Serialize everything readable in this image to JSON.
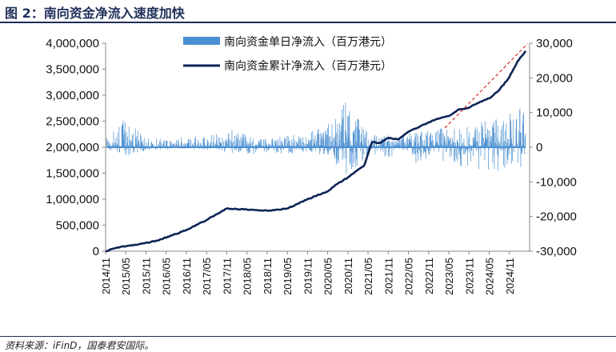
{
  "figure": {
    "title": "图 2：南向资金净流入速度加快",
    "source": "资料来源：iFinD，国泰君安国际。"
  },
  "colors": {
    "bar": "#4a8fd1",
    "line": "#0d2456",
    "trend": "#d62f2f",
    "title": "#1f2f5a"
  },
  "chart_data": {
    "type": "bar+line",
    "legend": [
      "南向资金单日净流入（百万港元）",
      "南向资金累计净流入（百万港元）"
    ],
    "legend_placement": "top-center",
    "x_ticks": [
      "2014/11",
      "2015/05",
      "2015/11",
      "2016/05",
      "2016/11",
      "2017/05",
      "2017/11",
      "2018/05",
      "2018/11",
      "2019/05",
      "2019/11",
      "2020/05",
      "2020/11",
      "2021/05",
      "2021/11",
      "2022/05",
      "2022/11",
      "2023/05",
      "2023/11",
      "2024/05",
      "2024/11"
    ],
    "y_left": {
      "label": "",
      "ylim": [
        0,
        4000000
      ],
      "ticks": [
        "0",
        "500,000",
        "1,000,000",
        "1,500,000",
        "2,000,000",
        "2,500,000",
        "3,000,000",
        "3,500,000",
        "4,000,000"
      ]
    },
    "y_right": {
      "label": "",
      "ylim": [
        -30000,
        30000
      ],
      "ticks": [
        "-30,000",
        "-20,000",
        "-10,000",
        "0",
        "10,000",
        "20,000",
        "30,000"
      ]
    },
    "series": [
      {
        "name": "南向资金累计净流入（百万港元）",
        "axis": "left",
        "type": "line",
        "x": [
          0,
          0.3,
          0.8,
          1.5,
          2.5,
          3.5,
          4.0,
          5.0,
          6.0,
          7.0,
          8.0,
          8.5,
          9.0,
          10.0,
          11.0,
          11.5,
          12.0,
          12.8,
          13.2,
          13.6,
          14.0,
          14.5,
          15.0,
          15.5,
          16.0,
          16.5,
          17.0,
          17.5,
          18.0,
          18.5,
          19.0,
          19.5,
          20.0,
          20.4,
          20.8
        ],
        "values": [
          0,
          40000,
          90000,
          120000,
          200000,
          330000,
          410000,
          600000,
          820000,
          800000,
          780000,
          800000,
          820000,
          1000000,
          1150000,
          1300000,
          1420000,
          1640000,
          2100000,
          2080000,
          2180000,
          2150000,
          2300000,
          2380000,
          2480000,
          2550000,
          2600000,
          2730000,
          2760000,
          2860000,
          2940000,
          3100000,
          3350000,
          3650000,
          3850000
        ]
      },
      {
        "name": "南向资金单日净流入（百万港元）",
        "axis": "right",
        "type": "bar",
        "note": "daily net inflow, approximate envelope read from figure",
        "envelope_x": [
          0,
          1,
          2,
          3,
          4,
          5,
          6,
          7,
          8,
          9,
          10,
          11,
          12,
          13,
          14,
          15,
          16,
          17,
          18,
          19,
          20,
          20.8
        ],
        "envelope_max": [
          3000,
          9000,
          3000,
          2500,
          3500,
          3000,
          6000,
          3500,
          2500,
          3500,
          4000,
          7000,
          16000,
          4000,
          3500,
          4000,
          5000,
          6000,
          6000,
          8000,
          10000,
          13000
        ],
        "envelope_min": [
          -500,
          -2500,
          -1000,
          -600,
          -500,
          -800,
          -1500,
          -2500,
          -1500,
          -2000,
          -1500,
          -2500,
          -9000,
          -3500,
          -3000,
          -5000,
          -4000,
          -5500,
          -6000,
          -7000,
          -7500,
          -9000
        ]
      }
    ],
    "trend_line": {
      "axis": "left",
      "x": [
        16.8,
        20.9
      ],
      "values": [
        2370000,
        3990000
      ],
      "style": "dashed"
    }
  }
}
